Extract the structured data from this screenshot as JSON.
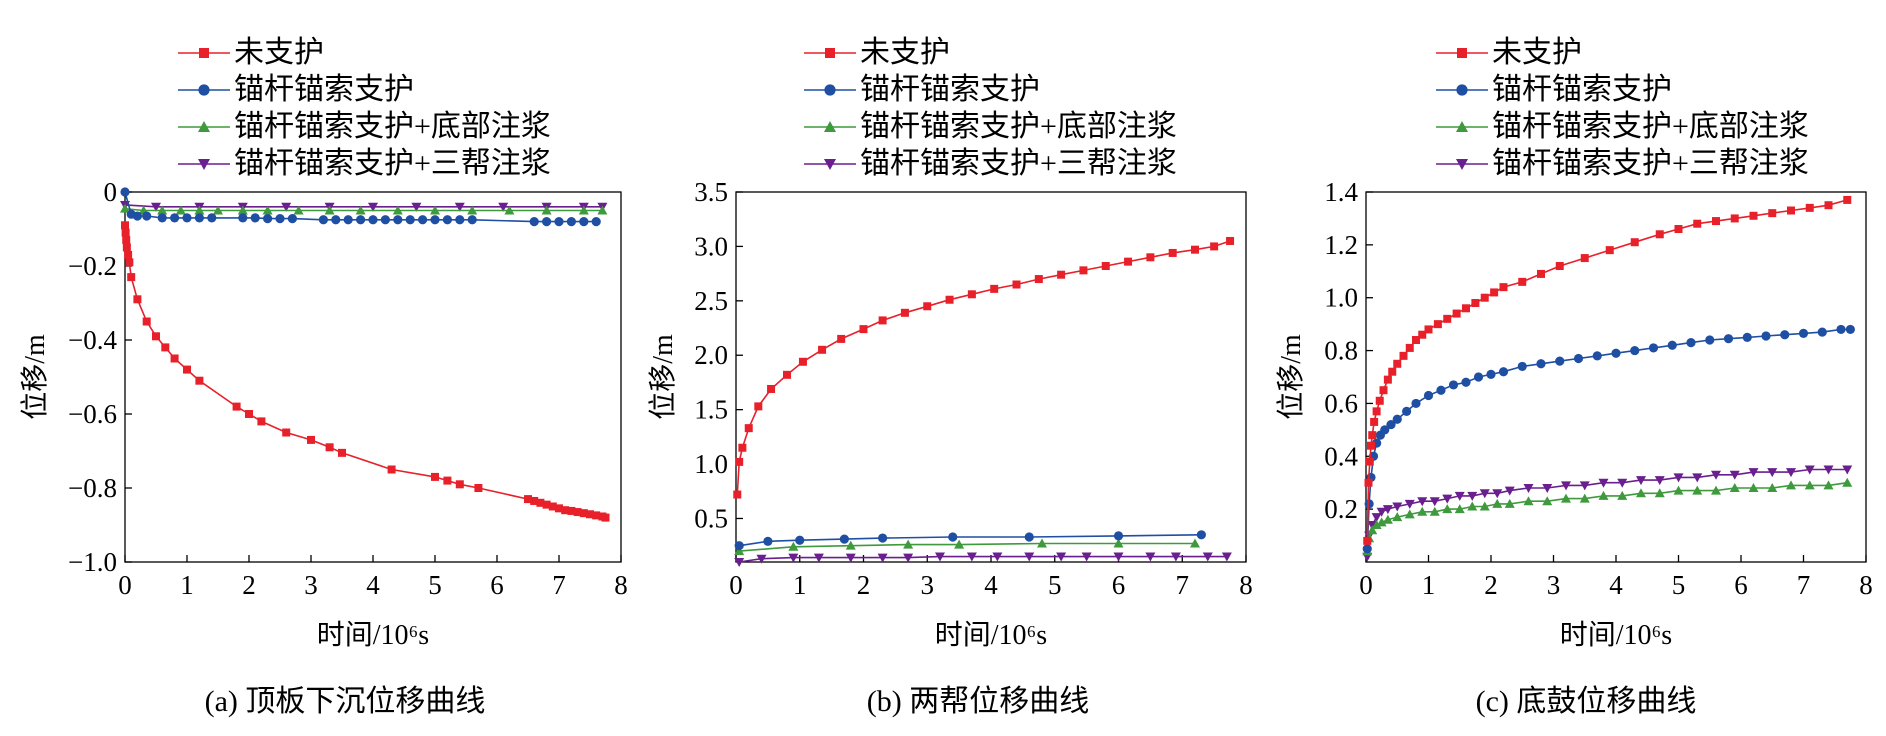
{
  "series_names": [
    "未支护",
    "锚杆锚索支护",
    "锚杆锚索支护+底部注浆",
    "锚杆锚索支护+三帮注浆"
  ],
  "series_colors": [
    "#e8202a",
    "#1f4fa3",
    "#3e9a3c",
    "#6a1f8e"
  ],
  "series_markers": [
    "square",
    "circle",
    "triangle-up",
    "triangle-down"
  ],
  "chart_data": [
    {
      "type": "line",
      "caption": "(a) 顶板下沉位移曲线",
      "xlabel": "时间/10⁶s",
      "ylabel": "位移/m",
      "xlim": [
        0,
        8
      ],
      "ylim": [
        -1.0,
        0
      ],
      "xticks": [
        "0",
        "1",
        "2",
        "3",
        "4",
        "5",
        "6",
        "7",
        "8"
      ],
      "yticks": [
        "0",
        "−0.2",
        "−0.4",
        "−0.6",
        "−0.8",
        "−1.0"
      ],
      "series": [
        {
          "name": "未支护",
          "x": [
            0,
            0.01,
            0.02,
            0.03,
            0.05,
            0.07,
            0.1,
            0.2,
            0.35,
            0.5,
            0.65,
            0.8,
            1.0,
            1.2,
            1.8,
            2.0,
            2.2,
            2.6,
            3.0,
            3.3,
            3.5,
            4.3,
            5.0,
            5.2,
            5.4,
            5.7,
            6.5,
            6.6,
            6.7,
            6.8,
            6.9,
            7.0,
            7.1,
            7.2,
            7.3,
            7.4,
            7.5,
            7.6,
            7.7,
            7.75
          ],
          "y": [
            -0.09,
            -0.11,
            -0.13,
            -0.15,
            -0.17,
            -0.19,
            -0.23,
            -0.29,
            -0.35,
            -0.39,
            -0.42,
            -0.45,
            -0.48,
            -0.51,
            -0.58,
            -0.6,
            -0.62,
            -0.65,
            -0.67,
            -0.69,
            -0.705,
            -0.75,
            -0.77,
            -0.78,
            -0.79,
            -0.8,
            -0.83,
            -0.835,
            -0.84,
            -0.845,
            -0.85,
            -0.855,
            -0.86,
            -0.862,
            -0.865,
            -0.868,
            -0.871,
            -0.874,
            -0.877,
            -0.88
          ]
        },
        {
          "name": "锚杆锚索支护",
          "x": [
            0,
            0.1,
            0.2,
            0.35,
            0.6,
            0.8,
            1.0,
            1.2,
            1.4,
            1.9,
            2.1,
            2.3,
            2.5,
            2.7,
            3.2,
            3.4,
            3.6,
            3.8,
            4.0,
            4.2,
            4.4,
            4.6,
            4.8,
            5.0,
            5.2,
            5.4,
            5.6,
            6.6,
            6.8,
            7.0,
            7.2,
            7.4,
            7.6
          ],
          "y": [
            0,
            -0.06,
            -0.065,
            -0.065,
            -0.07,
            -0.07,
            -0.07,
            -0.07,
            -0.07,
            -0.07,
            -0.07,
            -0.072,
            -0.072,
            -0.072,
            -0.075,
            -0.075,
            -0.075,
            -0.075,
            -0.075,
            -0.075,
            -0.075,
            -0.075,
            -0.075,
            -0.075,
            -0.075,
            -0.075,
            -0.075,
            -0.08,
            -0.08,
            -0.08,
            -0.08,
            -0.08,
            -0.08
          ]
        },
        {
          "name": "锚杆锚索支护+底部注浆",
          "x": [
            0,
            0.3,
            0.6,
            0.9,
            1.2,
            1.5,
            1.9,
            2.3,
            2.8,
            3.3,
            3.8,
            4.4,
            5.0,
            5.6,
            6.2,
            6.8,
            7.4,
            7.7
          ],
          "y": [
            -0.045,
            -0.05,
            -0.05,
            -0.05,
            -0.05,
            -0.05,
            -0.05,
            -0.05,
            -0.05,
            -0.05,
            -0.05,
            -0.05,
            -0.05,
            -0.05,
            -0.05,
            -0.05,
            -0.05,
            -0.05
          ]
        },
        {
          "name": "锚杆锚索支护+三帮注浆",
          "x": [
            0,
            0.5,
            1.2,
            1.9,
            2.6,
            3.3,
            4.0,
            4.7,
            5.4,
            6.1,
            6.8,
            7.4,
            7.7
          ],
          "y": [
            -0.035,
            -0.04,
            -0.04,
            -0.04,
            -0.04,
            -0.04,
            -0.04,
            -0.04,
            -0.04,
            -0.04,
            -0.04,
            -0.04,
            -0.04
          ]
        }
      ]
    },
    {
      "type": "line",
      "caption": "(b) 两帮位移曲线",
      "xlabel": "时间/10⁶s",
      "ylabel": "位移/m",
      "xlim": [
        0,
        8
      ],
      "ylim": [
        0.1,
        3.5
      ],
      "xticks": [
        "0",
        "1",
        "2",
        "3",
        "4",
        "5",
        "6",
        "7",
        "8"
      ],
      "yticks": [
        "0.5",
        "1.0",
        "1.5",
        "2.0",
        "2.5",
        "3.0",
        "3.5"
      ],
      "series": [
        {
          "name": "未支护",
          "x": [
            0.02,
            0.05,
            0.1,
            0.2,
            0.35,
            0.55,
            0.8,
            1.05,
            1.35,
            1.65,
            2.0,
            2.3,
            2.65,
            3.0,
            3.35,
            3.7,
            4.05,
            4.4,
            4.75,
            5.1,
            5.45,
            5.8,
            6.15,
            6.5,
            6.85,
            7.2,
            7.5,
            7.75
          ],
          "y": [
            0.72,
            1.02,
            1.15,
            1.33,
            1.53,
            1.69,
            1.82,
            1.94,
            2.05,
            2.15,
            2.24,
            2.32,
            2.39,
            2.45,
            2.51,
            2.56,
            2.61,
            2.65,
            2.7,
            2.74,
            2.78,
            2.82,
            2.86,
            2.9,
            2.94,
            2.97,
            3.0,
            3.05
          ]
        },
        {
          "name": "锚杆锚索支护",
          "x": [
            0.05,
            0.5,
            1.0,
            1.7,
            2.3,
            3.4,
            4.6,
            6.0,
            7.3
          ],
          "y": [
            0.25,
            0.29,
            0.3,
            0.31,
            0.32,
            0.33,
            0.33,
            0.34,
            0.35
          ]
        },
        {
          "name": "锚杆锚索支护+底部注浆",
          "x": [
            0.05,
            0.9,
            1.8,
            2.7,
            3.5,
            4.8,
            6.0,
            7.2
          ],
          "y": [
            0.2,
            0.24,
            0.25,
            0.26,
            0.26,
            0.27,
            0.27,
            0.27
          ]
        },
        {
          "name": "锚杆锚索支护+三帮注浆",
          "x": [
            0.05,
            0.4,
            0.9,
            1.3,
            1.8,
            2.3,
            2.7,
            3.2,
            3.7,
            4.1,
            4.6,
            5.1,
            5.5,
            6.0,
            6.5,
            6.9,
            7.4,
            7.7
          ],
          "y": [
            0.1,
            0.13,
            0.14,
            0.14,
            0.14,
            0.14,
            0.14,
            0.15,
            0.15,
            0.15,
            0.15,
            0.15,
            0.15,
            0.15,
            0.15,
            0.15,
            0.15,
            0.15
          ]
        }
      ]
    },
    {
      "type": "line",
      "caption": "(c) 底鼓位移曲线",
      "xlabel": "时间/10⁶s",
      "ylabel": "位移/m",
      "xlim": [
        0,
        8
      ],
      "ylim": [
        0,
        1.4
      ],
      "xticks": [
        "0",
        "1",
        "2",
        "3",
        "4",
        "5",
        "6",
        "7",
        "8"
      ],
      "yticks": [
        "0.2",
        "0.4",
        "0.6",
        "0.8",
        "1.0",
        "1.2",
        "1.4"
      ],
      "series": [
        {
          "name": "未支护",
          "x": [
            0.02,
            0.04,
            0.06,
            0.08,
            0.1,
            0.13,
            0.17,
            0.22,
            0.28,
            0.35,
            0.42,
            0.5,
            0.6,
            0.7,
            0.8,
            0.9,
            1.0,
            1.15,
            1.3,
            1.45,
            1.6,
            1.75,
            1.9,
            2.05,
            2.2,
            2.5,
            2.8,
            3.1,
            3.5,
            3.9,
            4.3,
            4.7,
            5.0,
            5.3,
            5.6,
            5.9,
            6.2,
            6.5,
            6.8,
            7.1,
            7.4,
            7.7
          ],
          "y": [
            0.08,
            0.3,
            0.38,
            0.44,
            0.48,
            0.53,
            0.57,
            0.61,
            0.65,
            0.69,
            0.72,
            0.75,
            0.78,
            0.81,
            0.84,
            0.86,
            0.88,
            0.9,
            0.92,
            0.94,
            0.96,
            0.98,
            1.0,
            1.02,
            1.04,
            1.06,
            1.09,
            1.12,
            1.15,
            1.18,
            1.21,
            1.24,
            1.26,
            1.28,
            1.29,
            1.3,
            1.31,
            1.32,
            1.33,
            1.34,
            1.35,
            1.37
          ]
        },
        {
          "name": "锚杆锚索支护",
          "x": [
            0.02,
            0.05,
            0.08,
            0.12,
            0.17,
            0.23,
            0.3,
            0.4,
            0.5,
            0.65,
            0.8,
            1.0,
            1.2,
            1.4,
            1.6,
            1.8,
            2.0,
            2.2,
            2.5,
            2.8,
            3.1,
            3.4,
            3.7,
            4.0,
            4.3,
            4.6,
            4.9,
            5.2,
            5.5,
            5.8,
            6.1,
            6.4,
            6.7,
            7.0,
            7.3,
            7.6,
            7.75
          ],
          "y": [
            0.05,
            0.22,
            0.32,
            0.4,
            0.45,
            0.48,
            0.5,
            0.52,
            0.54,
            0.57,
            0.6,
            0.63,
            0.65,
            0.67,
            0.68,
            0.7,
            0.71,
            0.72,
            0.74,
            0.75,
            0.76,
            0.77,
            0.78,
            0.79,
            0.8,
            0.81,
            0.82,
            0.83,
            0.84,
            0.845,
            0.85,
            0.855,
            0.86,
            0.865,
            0.87,
            0.88,
            0.88
          ]
        },
        {
          "name": "锚杆锚索支护+底部注浆",
          "x": [
            0.02,
            0.05,
            0.1,
            0.17,
            0.25,
            0.35,
            0.5,
            0.7,
            0.9,
            1.1,
            1.3,
            1.5,
            1.7,
            1.9,
            2.1,
            2.3,
            2.6,
            2.9,
            3.2,
            3.5,
            3.8,
            4.1,
            4.4,
            4.7,
            5.0,
            5.3,
            5.6,
            5.9,
            6.2,
            6.5,
            6.8,
            7.1,
            7.4,
            7.7
          ],
          "y": [
            0.04,
            0.09,
            0.12,
            0.14,
            0.15,
            0.16,
            0.17,
            0.18,
            0.19,
            0.19,
            0.2,
            0.2,
            0.21,
            0.21,
            0.22,
            0.22,
            0.23,
            0.23,
            0.24,
            0.24,
            0.25,
            0.25,
            0.26,
            0.26,
            0.27,
            0.27,
            0.27,
            0.28,
            0.28,
            0.28,
            0.29,
            0.29,
            0.29,
            0.3
          ]
        },
        {
          "name": "锚杆锚索支护+三帮注浆",
          "x": [
            0.02,
            0.05,
            0.1,
            0.17,
            0.25,
            0.35,
            0.5,
            0.7,
            0.9,
            1.1,
            1.3,
            1.5,
            1.7,
            1.9,
            2.1,
            2.3,
            2.6,
            2.9,
            3.2,
            3.5,
            3.8,
            4.1,
            4.4,
            4.7,
            5.0,
            5.3,
            5.6,
            5.9,
            6.2,
            6.5,
            6.8,
            7.1,
            7.4,
            7.7
          ],
          "y": [
            0.02,
            0.1,
            0.14,
            0.17,
            0.19,
            0.2,
            0.21,
            0.22,
            0.23,
            0.23,
            0.24,
            0.25,
            0.25,
            0.26,
            0.26,
            0.27,
            0.28,
            0.28,
            0.29,
            0.29,
            0.3,
            0.3,
            0.31,
            0.31,
            0.32,
            0.32,
            0.33,
            0.33,
            0.34,
            0.34,
            0.34,
            0.35,
            0.35,
            0.35
          ]
        }
      ]
    }
  ]
}
